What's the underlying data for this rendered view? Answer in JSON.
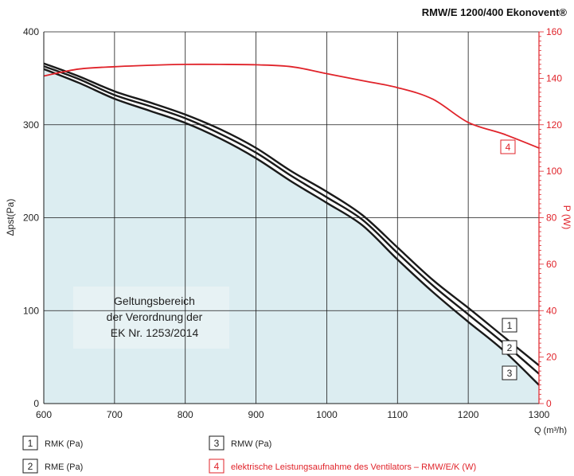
{
  "chart_data": {
    "type": "line",
    "title": "RMW/E 1200/400 Ekonovent®",
    "xlabel": "Q (m³/h)",
    "ylabel": "Δpst(Pa)",
    "ylabel_right": "P (W)",
    "xlim": [
      600,
      1300
    ],
    "ylim": [
      0,
      400
    ],
    "ylim_right": [
      0,
      160
    ],
    "x_ticks": [
      600,
      700,
      800,
      900,
      1000,
      1100,
      1200,
      1300
    ],
    "y_ticks": [
      0,
      100,
      200,
      300,
      400
    ],
    "y_ticks_right": [
      0,
      20,
      40,
      60,
      80,
      100,
      120,
      140,
      160
    ],
    "grid": true,
    "colors": {
      "pressure": "#1a1a1a",
      "power": "#e0232a",
      "area": "#dcedf1",
      "grid": "#1a1a1a"
    },
    "area_annotation": [
      "Geltungsbereich",
      "der Verordnung der",
      "EK Nr. 1253/2014"
    ],
    "series": [
      {
        "name": "RMK (Pa)",
        "marker": "1",
        "axis": "left",
        "x": [
          600,
          650,
          700,
          750,
          800,
          850,
          900,
          950,
          1000,
          1050,
          1100,
          1150,
          1200,
          1250,
          1300
        ],
        "y": [
          366,
          352,
          336,
          324,
          311,
          295,
          275,
          250,
          228,
          203,
          168,
          133,
          103,
          72,
          41
        ]
      },
      {
        "name": "RME (Pa)",
        "marker": "2",
        "axis": "left",
        "x": [
          600,
          650,
          700,
          750,
          800,
          850,
          900,
          950,
          1000,
          1050,
          1100,
          1150,
          1200,
          1250,
          1300
        ],
        "y": [
          363,
          349,
          332,
          320,
          307,
          290,
          270,
          245,
          222,
          198,
          162,
          127,
          96,
          65,
          32
        ]
      },
      {
        "name": "RMW (Pa)",
        "marker": "3",
        "axis": "left",
        "x": [
          600,
          650,
          700,
          750,
          800,
          850,
          900,
          950,
          1000,
          1050,
          1100,
          1150,
          1200,
          1250,
          1300
        ],
        "y": [
          360,
          345,
          328,
          315,
          302,
          285,
          264,
          239,
          216,
          192,
          155,
          120,
          88,
          57,
          20
        ]
      },
      {
        "name": "elektrische Leistungsaufnahme des Ventilators – RMW/E/K (W)",
        "marker": "4",
        "axis": "right",
        "x": [
          600,
          650,
          700,
          750,
          800,
          850,
          900,
          950,
          1000,
          1050,
          1100,
          1150,
          1200,
          1250,
          1300
        ],
        "y": [
          141,
          144,
          145,
          145.6,
          146,
          146,
          145.8,
          145,
          142,
          139,
          136,
          131,
          121,
          116,
          110
        ]
      }
    ]
  }
}
